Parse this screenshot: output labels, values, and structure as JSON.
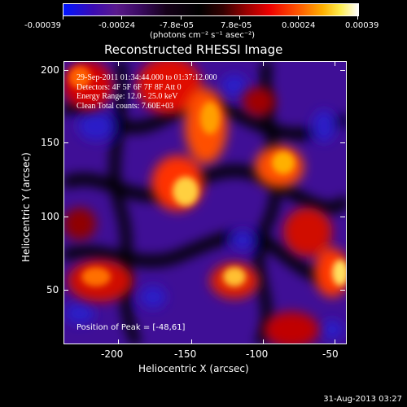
{
  "colorbar": {
    "labels": [
      "-0.00039",
      "-0.00024",
      "-7.8e-05",
      "7.8e-05",
      "0.00024",
      "0.00039"
    ],
    "units": "(photons cm⁻² s⁻¹ asec⁻²)"
  },
  "title": "Reconstructed RHESSI Image",
  "info": {
    "line1": "29-Sep-2011 01:34:44.000 to 01:37:12.000",
    "line2": "Detectors: 4F 5F 6F 7F 8F Att 0",
    "line3": "Energy Range: 12.0 - 25.0 keV",
    "line4": "Clean     Total counts: 7.60E+03"
  },
  "peak": "Position of Peak = [-48,61]",
  "axes": {
    "xlabel": "Heliocentric X (arcsec)",
    "ylabel": "Heliocentric Y (arcsec)",
    "xticks": [
      "-200",
      "-150",
      "-100",
      "-50"
    ],
    "yticks": [
      "200",
      "150",
      "100",
      "50"
    ],
    "xrange": [
      -235,
      -45
    ],
    "yrange": [
      13,
      205
    ]
  },
  "timestamp": "31-Aug-2013 03:27",
  "colors": {
    "background": "#000000",
    "low": "#3f0f96",
    "high": "#ffffff"
  }
}
